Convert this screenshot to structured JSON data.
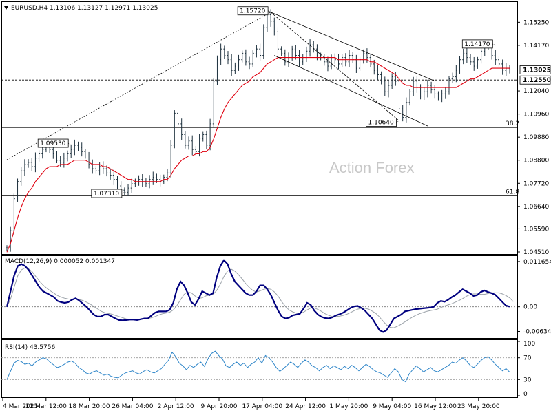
{
  "chart_data": {
    "type": "line",
    "title": "EURUSD,H4  1.13106 1.13127 1.12971 1.13025",
    "watermark": "Action Forex",
    "colors": {
      "candle": "#1c2f3c",
      "ema": "#e0000f",
      "macd": "#00007f",
      "signal": "#9aa1a8",
      "rsi": "#2f86c9",
      "grid": "#000000",
      "bg": "#ffffff"
    },
    "x_labels": [
      "4 Mar 2025",
      "11 Mar 12:00",
      "18 Mar 20:00",
      "26 Mar 04:00",
      "2 Apr 12:00",
      "9 Apr 20:00",
      "17 Apr 04:00",
      "24 Apr 12:00",
      "1 May 20:00",
      "9 May 04:00",
      "16 May 12:00",
      "23 May 20:00"
    ],
    "main_panel": {
      "ylim": [
        1.0451,
        1.1613
      ],
      "y_ticks": [
        "1.15250",
        "1.14170",
        "1.13025",
        "1.12550",
        "1.12040",
        "1.10960",
        "1.09880",
        "1.08800",
        "1.07720",
        "1.06640",
        "1.05590",
        "1.04510"
      ],
      "current_price": "1.13025",
      "close_values": [
        1.047,
        1.055,
        1.07,
        1.078,
        1.083,
        1.086,
        1.087,
        1.085,
        1.089,
        1.091,
        1.093,
        1.095,
        1.093,
        1.091,
        1.088,
        1.087,
        1.089,
        1.091,
        1.093,
        1.095,
        1.094,
        1.092,
        1.09,
        1.086,
        1.084,
        1.083,
        1.085,
        1.084,
        1.082,
        1.081,
        1.079,
        1.076,
        1.074,
        1.073,
        1.075,
        1.077,
        1.078,
        1.079,
        1.078,
        1.077,
        1.079,
        1.08,
        1.079,
        1.078,
        1.08,
        1.082,
        1.095,
        1.11,
        1.105,
        1.1,
        1.095,
        1.097,
        1.093,
        1.092,
        1.098,
        1.1,
        1.095,
        1.105,
        1.125,
        1.135,
        1.14,
        1.137,
        1.135,
        1.13,
        1.132,
        1.135,
        1.138,
        1.134,
        1.133,
        1.138,
        1.14,
        1.137,
        1.15,
        1.156,
        1.153,
        1.148,
        1.14,
        1.138,
        1.134,
        1.136,
        1.14,
        1.137,
        1.134,
        1.136,
        1.139,
        1.142,
        1.14,
        1.137,
        1.136,
        1.134,
        1.132,
        1.136,
        1.135,
        1.133,
        1.136,
        1.134,
        1.137,
        1.135,
        1.131,
        1.135,
        1.138,
        1.136,
        1.133,
        1.13,
        1.128,
        1.125,
        1.12,
        1.123,
        1.127,
        1.125,
        1.112,
        1.108,
        1.115,
        1.12,
        1.125,
        1.122,
        1.118,
        1.12,
        1.123,
        1.121,
        1.119,
        1.117,
        1.119,
        1.12,
        1.126,
        1.127,
        1.13,
        1.135,
        1.138,
        1.136,
        1.134,
        1.132,
        1.135,
        1.139,
        1.142,
        1.141,
        1.137,
        1.135,
        1.133,
        1.13,
        1.131,
        1.13025
      ],
      "ema_values": [
        1.045,
        1.049,
        1.055,
        1.061,
        1.066,
        1.07,
        1.073,
        1.075,
        1.078,
        1.08,
        1.082,
        1.084,
        1.085,
        1.085,
        1.085,
        1.086,
        1.086,
        1.086,
        1.087,
        1.088,
        1.088,
        1.088,
        1.088,
        1.087,
        1.086,
        1.086,
        1.086,
        1.085,
        1.085,
        1.084,
        1.083,
        1.082,
        1.081,
        1.08,
        1.079,
        1.079,
        1.078,
        1.078,
        1.078,
        1.078,
        1.078,
        1.078,
        1.078,
        1.078,
        1.079,
        1.079,
        1.081,
        1.084,
        1.086,
        1.088,
        1.089,
        1.09,
        1.09,
        1.091,
        1.091,
        1.092,
        1.092,
        1.094,
        1.098,
        1.103,
        1.108,
        1.112,
        1.115,
        1.117,
        1.119,
        1.121,
        1.123,
        1.124,
        1.125,
        1.127,
        1.128,
        1.129,
        1.131,
        1.133,
        1.134,
        1.135,
        1.136,
        1.136,
        1.136,
        1.136,
        1.136,
        1.136,
        1.136,
        1.136,
        1.136,
        1.136,
        1.136,
        1.136,
        1.136,
        1.136,
        1.136,
        1.136,
        1.136,
        1.135,
        1.135,
        1.135,
        1.135,
        1.135,
        1.135,
        1.135,
        1.135,
        1.135,
        1.134,
        1.134,
        1.133,
        1.132,
        1.131,
        1.13,
        1.129,
        1.128,
        1.126,
        1.124,
        1.123,
        1.123,
        1.122,
        1.122,
        1.122,
        1.122,
        1.122,
        1.122,
        1.122,
        1.122,
        1.122,
        1.122,
        1.122,
        1.122,
        1.122,
        1.123,
        1.124,
        1.125,
        1.126,
        1.126,
        1.127,
        1.128,
        1.129,
        1.13,
        1.131,
        1.131,
        1.131,
        1.131,
        1.131,
        1.131
      ],
      "swing_labels": [
        {
          "text": "1.15720",
          "i": 74,
          "price": 1.1572
        },
        {
          "text": "1.14170",
          "i": 137,
          "price": 1.1417
        },
        {
          "text": "1.09530",
          "i": 18,
          "price": 1.0953
        },
        {
          "text": "1.07310",
          "i": 33,
          "price": 1.0731
        },
        {
          "text": "1.10640",
          "i": 110,
          "price": 1.1064
        }
      ],
      "fib_levels": [
        {
          "text": "38.2",
          "price": 1.1033
        },
        {
          "text": "61.8",
          "price": 1.0714
        }
      ],
      "support_level": {
        "text": "1.12550",
        "price": 1.1255
      },
      "channel_upper": [
        [
          74,
          1.1572
        ],
        [
          120,
          1.125
        ]
      ],
      "channel_lower": [
        [
          75,
          1.137
        ],
        [
          118,
          1.104
        ]
      ],
      "trend_dotted": [
        [
          0,
          1.0882
        ],
        [
          74,
          1.1572
        ]
      ],
      "retrace_dotted": [
        [
          74,
          1.1572
        ],
        [
          110,
          1.1064
        ]
      ]
    },
    "macd_panel": {
      "label": "MACD(12,26,9) 0.000052 0.001347",
      "ylim": [
        -0.0075,
        0.0127
      ],
      "y_ticks": [
        "0.011654",
        "0.00",
        "-0.006345"
      ],
      "macd_values": [
        0.0,
        0.004,
        0.008,
        0.0105,
        0.011,
        0.0105,
        0.0095,
        0.008,
        0.0065,
        0.005,
        0.004,
        0.0035,
        0.003,
        0.0025,
        0.0015,
        0.0012,
        0.001,
        0.0012,
        0.0018,
        0.0022,
        0.0016,
        0.0008,
        0.0,
        -0.001,
        -0.002,
        -0.0025,
        -0.0025,
        -0.002,
        -0.002,
        -0.0025,
        -0.003,
        -0.0034,
        -0.0035,
        -0.0034,
        -0.0033,
        -0.0033,
        -0.0034,
        -0.0032,
        -0.003,
        -0.003,
        -0.0022,
        -0.0015,
        -0.0012,
        -0.0012,
        -0.0012,
        -0.0008,
        0.001,
        0.0045,
        0.0065,
        0.0055,
        0.0035,
        0.0012,
        0.0005,
        0.002,
        0.004,
        0.0035,
        0.003,
        0.0035,
        0.0075,
        0.0105,
        0.012,
        0.011,
        0.0085,
        0.0065,
        0.0055,
        0.0045,
        0.0035,
        0.003,
        0.003,
        0.004,
        0.0055,
        0.0055,
        0.0045,
        0.003,
        0.001,
        -0.001,
        -0.0025,
        -0.003,
        -0.0028,
        -0.0022,
        -0.002,
        -0.0018,
        -0.0005,
        0.001,
        0.0005,
        -0.001,
        -0.002,
        -0.0026,
        -0.0029,
        -0.003,
        -0.0027,
        -0.0022,
        -0.0019,
        -0.0015,
        -0.0009,
        -0.0003,
        0.0001,
        0.0002,
        -0.0003,
        -0.001,
        -0.002,
        -0.003,
        -0.0045,
        -0.006,
        -0.0065,
        -0.006,
        -0.0045,
        -0.003,
        -0.0025,
        -0.002,
        -0.0012,
        -0.001,
        -0.0008,
        -0.0006,
        -0.0005,
        -0.0004,
        -0.0003,
        -0.0002,
        0.0,
        0.001,
        0.0015,
        0.0013,
        0.0018,
        0.0025,
        0.003,
        0.0038,
        0.0045,
        0.004,
        0.0035,
        0.0028,
        0.003,
        0.0038,
        0.0042,
        0.0038,
        0.0035,
        0.0031,
        0.0022,
        0.0012,
        0.0003,
        5.2e-05
      ],
      "signal_values": [
        0.0,
        0.002,
        0.005,
        0.008,
        0.0095,
        0.01,
        0.0098,
        0.009,
        0.0078,
        0.0066,
        0.0056,
        0.0048,
        0.0041,
        0.0035,
        0.0029,
        0.0025,
        0.0022,
        0.002,
        0.0019,
        0.002,
        0.0019,
        0.0016,
        0.0012,
        0.0007,
        0.0001,
        -0.0005,
        -0.0011,
        -0.0015,
        -0.0017,
        -0.0019,
        -0.0022,
        -0.0025,
        -0.0028,
        -0.0031,
        -0.0032,
        -0.0032,
        -0.0032,
        -0.0032,
        -0.0031,
        -0.003,
        -0.0028,
        -0.0025,
        -0.0021,
        -0.0018,
        -0.0016,
        -0.0014,
        -0.0008,
        0.0003,
        0.0018,
        0.0032,
        0.0038,
        0.0036,
        0.0028,
        0.0022,
        0.0023,
        0.0028,
        0.003,
        0.0032,
        0.0042,
        0.0058,
        0.0078,
        0.0092,
        0.0097,
        0.0092,
        0.0083,
        0.0072,
        0.006,
        0.005,
        0.0042,
        0.0038,
        0.0041,
        0.0045,
        0.0047,
        0.0045,
        0.0038,
        0.0027,
        0.0013,
        0.0001,
        -0.0008,
        -0.0013,
        -0.0016,
        -0.0017,
        -0.0014,
        -0.0008,
        -0.0003,
        -0.0003,
        -0.0007,
        -0.0012,
        -0.0018,
        -0.0022,
        -0.0025,
        -0.0025,
        -0.0024,
        -0.0022,
        -0.0019,
        -0.0015,
        -0.001,
        -0.0006,
        -0.0004,
        -0.0004,
        -0.0006,
        -0.0011,
        -0.0017,
        -0.0026,
        -0.0037,
        -0.0047,
        -0.0053,
        -0.0054,
        -0.005,
        -0.0045,
        -0.0039,
        -0.0033,
        -0.0027,
        -0.0022,
        -0.0018,
        -0.0015,
        -0.0012,
        -0.001,
        -0.0008,
        -0.0006,
        -0.0002,
        0.0002,
        0.0005,
        0.0008,
        0.0012,
        0.0016,
        0.0021,
        0.0027,
        0.0031,
        0.0033,
        0.0033,
        0.0032,
        0.0032,
        0.0034,
        0.0036,
        0.0036,
        0.0036,
        0.0033,
        0.0029,
        0.0023,
        0.001347
      ]
    },
    "rsi_panel": {
      "label": "RSI(14) 43.5756",
      "ylim": [
        0,
        100
      ],
      "y_ticks": [
        "100",
        "70",
        "30",
        "0"
      ],
      "levels": [
        70,
        30
      ],
      "rsi_values": [
        30,
        45,
        60,
        65,
        63,
        58,
        60,
        55,
        62,
        66,
        70,
        68,
        62,
        57,
        52,
        54,
        58,
        62,
        64,
        60,
        52,
        48,
        42,
        40,
        44,
        46,
        42,
        38,
        40,
        36,
        34,
        33,
        38,
        42,
        44,
        46,
        42,
        40,
        45,
        48,
        44,
        42,
        46,
        50,
        58,
        65,
        80,
        72,
        60,
        55,
        48,
        56,
        52,
        58,
        62,
        54,
        68,
        78,
        82,
        74,
        68,
        55,
        52,
        58,
        62,
        56,
        60,
        52,
        58,
        62,
        70,
        60,
        74,
        70,
        62,
        52,
        45,
        50,
        56,
        62,
        58,
        52,
        60,
        66,
        62,
        55,
        52,
        46,
        52,
        56,
        50,
        55,
        52,
        48,
        54,
        50,
        56,
        52,
        46,
        52,
        58,
        54,
        48,
        44,
        42,
        38,
        34,
        42,
        50,
        44,
        30,
        26,
        40,
        48,
        55,
        50,
        44,
        48,
        52,
        46,
        44,
        48,
        52,
        56,
        62,
        60,
        66,
        70,
        64,
        56,
        52,
        58,
        65,
        70,
        72,
        66,
        58,
        52,
        46,
        50,
        43.5756
      ]
    }
  }
}
